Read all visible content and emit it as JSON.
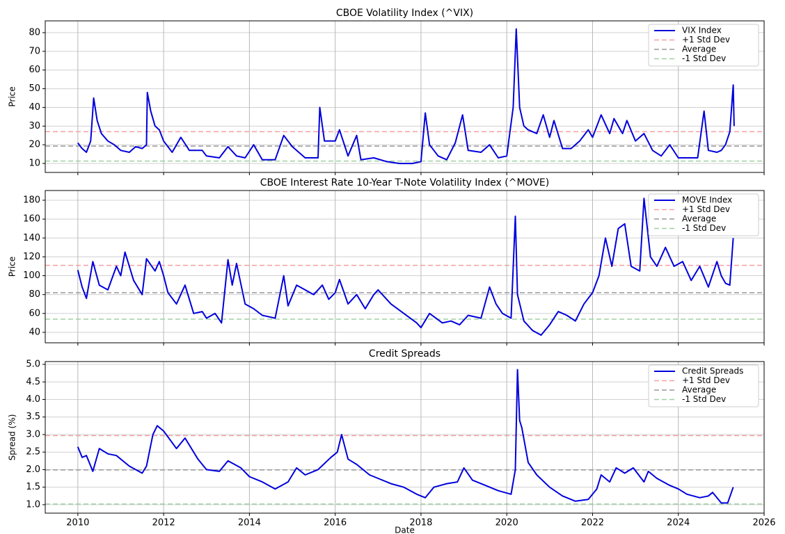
{
  "chart_data": [
    {
      "type": "line",
      "title": "CBOE Volatility Index (^VIX)",
      "ylabel": "Price",
      "x": [
        2010.0,
        2010.1,
        2010.2,
        2010.3,
        2010.37,
        2010.45,
        2010.55,
        2010.7,
        2010.85,
        2011.0,
        2011.2,
        2011.35,
        2011.5,
        2011.6,
        2011.62,
        2011.7,
        2011.8,
        2011.9,
        2012.0,
        2012.2,
        2012.4,
        2012.6,
        2012.9,
        2013.0,
        2013.3,
        2013.5,
        2013.7,
        2013.9,
        2014.1,
        2014.3,
        2014.6,
        2014.8,
        2015.0,
        2015.3,
        2015.6,
        2015.64,
        2015.75,
        2016.0,
        2016.1,
        2016.3,
        2016.5,
        2016.6,
        2016.9,
        2017.2,
        2017.5,
        2017.8,
        2018.0,
        2018.1,
        2018.2,
        2018.4,
        2018.6,
        2018.8,
        2018.97,
        2019.1,
        2019.4,
        2019.6,
        2019.8,
        2020.0,
        2020.15,
        2020.22,
        2020.3,
        2020.4,
        2020.5,
        2020.7,
        2020.85,
        2021.0,
        2021.1,
        2021.3,
        2021.5,
        2021.7,
        2021.9,
        2022.0,
        2022.2,
        2022.4,
        2022.5,
        2022.7,
        2022.8,
        2023.0,
        2023.2,
        2023.4,
        2023.6,
        2023.8,
        2024.0,
        2024.3,
        2024.45,
        2024.6,
        2024.7,
        2024.9,
        2025.0,
        2025.1,
        2025.2,
        2025.28,
        2025.3
      ],
      "series": [
        {
          "name": "VIX Index",
          "color": "#0000dd",
          "values": [
            21,
            18,
            16,
            22,
            45,
            33,
            26,
            22,
            20,
            17,
            16,
            19,
            18,
            20,
            48,
            38,
            30,
            28,
            22,
            16,
            24,
            17,
            17,
            14,
            13,
            19,
            14,
            13,
            20,
            12,
            12,
            25,
            19,
            13,
            13,
            40,
            22,
            22,
            28,
            14,
            25,
            12,
            13,
            11,
            10,
            10,
            11,
            37,
            20,
            14,
            12,
            21,
            36,
            17,
            16,
            20,
            13,
            14,
            40,
            82,
            40,
            30,
            28,
            26,
            36,
            24,
            33,
            18,
            18,
            22,
            28,
            24,
            36,
            26,
            34,
            26,
            33,
            22,
            26,
            17,
            14,
            20,
            13,
            13,
            13,
            38,
            17,
            16,
            17,
            20,
            27,
            52,
            30
          ]
        }
      ],
      "hlines": [
        {
          "name": "+1 Std Dev",
          "color": "#f4a0a0",
          "value": 27
        },
        {
          "name": "Average",
          "color": "#999999",
          "value": 19.3
        },
        {
          "name": "-1 Std Dev",
          "color": "#a0d0a0",
          "value": 11.3
        }
      ],
      "xlim": [
        2009.24,
        2026
      ],
      "xticks": [
        2010,
        2012,
        2014,
        2016,
        2018,
        2020,
        2022,
        2024,
        2026
      ],
      "ylim": [
        5.2,
        86.3
      ],
      "yticks": [
        10,
        20,
        30,
        40,
        50,
        60,
        70,
        80
      ],
      "grid": true,
      "legend": "upper right"
    },
    {
      "type": "line",
      "title": "CBOE Interest Rate 10-Year T-Note Volatility Index (^MOVE)",
      "ylabel": "Price",
      "x": [
        2010.0,
        2010.1,
        2010.2,
        2010.35,
        2010.5,
        2010.7,
        2010.9,
        2011.0,
        2011.1,
        2011.3,
        2011.5,
        2011.6,
        2011.8,
        2011.9,
        2012.0,
        2012.1,
        2012.3,
        2012.5,
        2012.7,
        2012.9,
        2013.0,
        2013.2,
        2013.35,
        2013.5,
        2013.6,
        2013.7,
        2013.9,
        2014.1,
        2014.3,
        2014.6,
        2014.8,
        2014.9,
        2015.1,
        2015.3,
        2015.5,
        2015.7,
        2015.85,
        2016.0,
        2016.1,
        2016.3,
        2016.5,
        2016.7,
        2016.9,
        2017.0,
        2017.3,
        2017.6,
        2017.9,
        2018.0,
        2018.2,
        2018.5,
        2018.7,
        2018.9,
        2019.1,
        2019.4,
        2019.6,
        2019.75,
        2019.9,
        2020.1,
        2020.2,
        2020.25,
        2020.4,
        2020.6,
        2020.8,
        2021.0,
        2021.2,
        2021.4,
        2021.6,
        2021.8,
        2022.0,
        2022.15,
        2022.3,
        2022.45,
        2022.6,
        2022.75,
        2022.9,
        2023.1,
        2023.2,
        2023.35,
        2023.5,
        2023.7,
        2023.9,
        2024.1,
        2024.3,
        2024.5,
        2024.7,
        2024.9,
        2025.0,
        2025.1,
        2025.2,
        2025.28
      ],
      "series": [
        {
          "name": "MOVE Index",
          "color": "#0000dd",
          "values": [
            106,
            88,
            76,
            115,
            90,
            85,
            110,
            100,
            125,
            95,
            80,
            118,
            105,
            115,
            100,
            82,
            70,
            90,
            60,
            62,
            55,
            60,
            50,
            117,
            90,
            113,
            70,
            65,
            58,
            55,
            100,
            68,
            90,
            85,
            80,
            90,
            75,
            82,
            96,
            70,
            80,
            65,
            80,
            85,
            70,
            60,
            50,
            45,
            60,
            50,
            52,
            48,
            58,
            55,
            88,
            70,
            60,
            55,
            163,
            80,
            52,
            42,
            37,
            48,
            62,
            58,
            52,
            70,
            82,
            100,
            140,
            110,
            150,
            155,
            110,
            105,
            182,
            120,
            110,
            130,
            110,
            115,
            95,
            110,
            88,
            115,
            100,
            92,
            90,
            140
          ]
        }
      ],
      "hlines": [
        {
          "name": "+1 Std Dev",
          "color": "#f4a0a0",
          "value": 111
        },
        {
          "name": "Average",
          "color": "#999999",
          "value": 82
        },
        {
          "name": "-1 Std Dev",
          "color": "#a0d0a0",
          "value": 54
        }
      ],
      "xlim": [
        2009.24,
        2026
      ],
      "xticks": [
        2010,
        2012,
        2014,
        2016,
        2018,
        2020,
        2022,
        2024,
        2026
      ],
      "ylim": [
        28.9,
        190.3
      ],
      "yticks": [
        40,
        60,
        80,
        100,
        120,
        140,
        160,
        180
      ],
      "grid": true,
      "legend": "upper right"
    },
    {
      "type": "line",
      "title": "Credit Spreads",
      "ylabel": "Spread (%)",
      "xlabel": "Date",
      "x": [
        2010.0,
        2010.1,
        2010.2,
        2010.35,
        2010.5,
        2010.7,
        2010.9,
        2011.2,
        2011.5,
        2011.6,
        2011.75,
        2011.85,
        2012.0,
        2012.3,
        2012.5,
        2012.8,
        2013.0,
        2013.3,
        2013.5,
        2013.8,
        2014.0,
        2014.3,
        2014.6,
        2014.9,
        2015.1,
        2015.3,
        2015.6,
        2015.9,
        2016.05,
        2016.15,
        2016.3,
        2016.5,
        2016.8,
        2017.0,
        2017.3,
        2017.6,
        2017.9,
        2018.1,
        2018.3,
        2018.6,
        2018.85,
        2019.0,
        2019.2,
        2019.5,
        2019.8,
        2020.1,
        2020.2,
        2020.25,
        2020.3,
        2020.35,
        2020.5,
        2020.7,
        2021.0,
        2021.3,
        2021.6,
        2021.9,
        2022.1,
        2022.2,
        2022.4,
        2022.55,
        2022.75,
        2022.95,
        2023.2,
        2023.3,
        2023.5,
        2023.8,
        2024.0,
        2024.2,
        2024.5,
        2024.7,
        2024.8,
        2025.0,
        2025.15,
        2025.28
      ],
      "series": [
        {
          "name": "Credit Spreads",
          "color": "#0000dd",
          "values": [
            2.65,
            2.35,
            2.4,
            1.95,
            2.6,
            2.45,
            2.4,
            2.1,
            1.9,
            2.1,
            3.0,
            3.25,
            3.1,
            2.6,
            2.9,
            2.3,
            2.0,
            1.95,
            2.25,
            2.05,
            1.8,
            1.65,
            1.45,
            1.65,
            2.05,
            1.85,
            2.0,
            2.35,
            2.5,
            3.0,
            2.3,
            2.15,
            1.85,
            1.75,
            1.6,
            1.5,
            1.3,
            1.2,
            1.5,
            1.6,
            1.65,
            2.05,
            1.7,
            1.55,
            1.4,
            1.3,
            2.0,
            4.85,
            3.4,
            3.2,
            2.2,
            1.85,
            1.5,
            1.25,
            1.1,
            1.15,
            1.45,
            1.85,
            1.65,
            2.05,
            1.9,
            2.05,
            1.65,
            1.95,
            1.75,
            1.55,
            1.45,
            1.3,
            1.2,
            1.25,
            1.35,
            1.05,
            1.05,
            1.5
          ]
        }
      ],
      "hlines": [
        {
          "name": "+1 Std Dev",
          "color": "#f4a0a0",
          "value": 2.97
        },
        {
          "name": "Average",
          "color": "#999999",
          "value": 1.99
        },
        {
          "name": "-1 Std Dev",
          "color": "#a0d0a0",
          "value": 1.02
        }
      ],
      "xlim": [
        2009.24,
        2026
      ],
      "xticks": [
        2010,
        2012,
        2014,
        2016,
        2018,
        2020,
        2022,
        2024,
        2026
      ],
      "ylim": [
        0.76,
        5.08
      ],
      "yticks": [
        {
          "value": 1,
          "label": "1.0"
        },
        1.5,
        {
          "value": 2,
          "label": "2.0"
        },
        2.5,
        {
          "value": 3,
          "label": "3.0"
        },
        3.5,
        {
          "value": 4,
          "label": "4.0"
        },
        4.5,
        {
          "value": 5,
          "label": "5.0"
        }
      ],
      "grid": true,
      "legend": "upper right"
    }
  ]
}
